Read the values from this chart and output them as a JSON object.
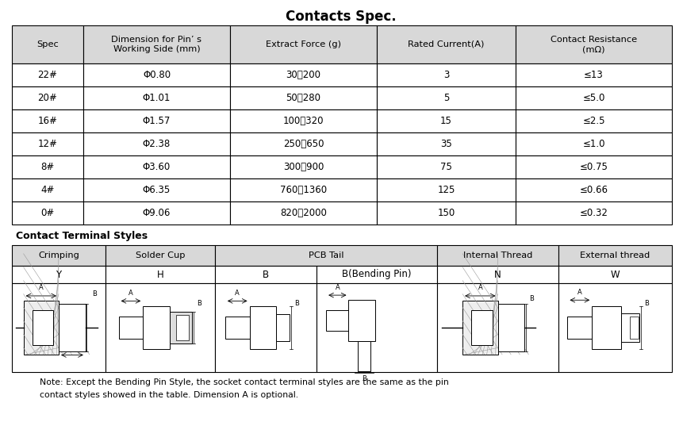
{
  "title": "Contacts Spec.",
  "table1_headers": [
    "Spec",
    "Dimension for Pin’ s\nWorking Side (mm)",
    "Extract Force (g)",
    "Rated Current(A)",
    "Contact Resistance\n(mΩ)"
  ],
  "table1_rows": [
    [
      "22#",
      "Φ0.80",
      "30～200",
      "3",
      "≤13"
    ],
    [
      "20#",
      "Φ1.01",
      "50～280",
      "5",
      "≤5.0"
    ],
    [
      "16#",
      "Φ1.57",
      "100～320",
      "15",
      "≤2.5"
    ],
    [
      "12#",
      "Φ2.38",
      "250～650",
      "35",
      "≤1.0"
    ],
    [
      "8#",
      "Φ3.60",
      "300～900",
      "75",
      "≤0.75"
    ],
    [
      "4#",
      "Φ6.35",
      "760～1360",
      "125",
      "≤0.66"
    ],
    [
      "0#",
      "Φ9.06",
      "820～2000",
      "150",
      "≤0.32"
    ]
  ],
  "table2_title": "Contact Terminal Styles",
  "table2_subheaders": [
    "Y",
    "H",
    "B",
    "B(Bending Pin)",
    "N",
    "W"
  ],
  "note_line1": "Note: Except the Bending Pin Style, the socket contact terminal styles are the same as the pin",
  "note_line2": "contact styles showed in the table. Dimension A is optional.",
  "bg_color": "#ffffff",
  "text_color": "#000000",
  "header_bg": "#d8d8d8",
  "row_bg": "#ffffff"
}
